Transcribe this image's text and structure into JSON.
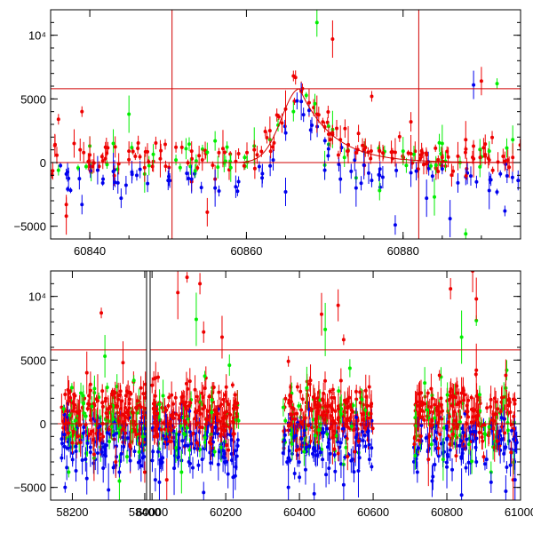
{
  "chart_data": [
    {
      "type": "scatter",
      "title": "",
      "xlabel": "",
      "ylabel": "",
      "xlim": [
        60835,
        60895
      ],
      "ylim": [
        -6000,
        12000
      ],
      "xticks": [
        {
          "value": 60840,
          "label": "60840"
        },
        {
          "value": 60860,
          "label": "60860"
        },
        {
          "value": 60880,
          "label": "60880"
        }
      ],
      "yticks": [
        {
          "value": -5000,
          "label": "−5000"
        },
        {
          "value": 0,
          "label": "0"
        },
        {
          "value": 5000,
          "label": "5000"
        },
        {
          "value": 10000,
          "label": "10⁴"
        }
      ],
      "hlines": [
        5800,
        0
      ],
      "vlines": [
        60850.5,
        60882
      ],
      "colors": {
        "g": "#00ee00",
        "r": "#ee0000",
        "b": "#0000ee",
        "line": "#d00000"
      },
      "model": {
        "peak_x": 60866.8,
        "peak_y": 5800,
        "rise": 2.3,
        "decay": 4.2,
        "baseline": 0
      },
      "series": [
        {
          "name": "g",
          "color": "#00ee00",
          "x": [
            60836,
            60840,
            60843,
            60847,
            60851,
            60855,
            60858,
            60861,
            60863,
            60866,
            60869,
            60871,
            60874,
            60877,
            60880,
            60884,
            60888,
            60891,
            60894,
            60845,
            60892,
            60856,
            60870,
            60885
          ],
          "y": [
            -600,
            1300,
            1500,
            -900,
            200,
            800,
            -400,
            1300,
            1800,
            4000,
            11000,
            2600,
            -1200,
            -2200,
            900,
            -2700,
            -5600,
            900,
            1800,
            3800,
            6200,
            1700,
            -200,
            1500
          ]
        },
        {
          "name": "r",
          "color": "#ee0000",
          "x": [
            60836,
            60837,
            60838,
            60840,
            60842,
            60845,
            60847,
            60849,
            60851,
            60853,
            60855,
            60857,
            60859,
            60861,
            60863,
            60865,
            60866,
            60867,
            60868,
            60869,
            60870,
            60871,
            60872,
            60873,
            60875,
            60877,
            60879,
            60881,
            60883,
            60885,
            60887,
            60889,
            60891,
            60893,
            60894,
            60837,
            60839,
            60853,
            60856,
            60871,
            60876,
            60881,
            60890,
            60888
          ],
          "y": [
            3400,
            -3300,
            1500,
            600,
            1200,
            900,
            -400,
            300,
            1200,
            900,
            -3900,
            1100,
            700,
            1000,
            2500,
            4200,
            6800,
            5600,
            4700,
            3800,
            2800,
            2200,
            1800,
            1400,
            1000,
            900,
            800,
            700,
            600,
            400,
            500,
            300,
            200,
            100,
            400,
            -4200,
            4000,
            -1500,
            -1300,
            9700,
            5200,
            3200,
            6400,
            1800
          ]
        },
        {
          "name": "b",
          "color": "#0000ee",
          "x": [
            60837,
            60839,
            60841,
            60843,
            60846,
            60850,
            60853,
            60856,
            60859,
            60862,
            60865,
            60867,
            60868,
            60870,
            60872,
            60874,
            60877,
            60879,
            60881,
            60883,
            60885,
            60887,
            60889,
            60891,
            60893,
            60844,
            60875,
            60886
          ],
          "y": [
            -900,
            -3300,
            -600,
            -700,
            -1000,
            -1400,
            -1300,
            -2000,
            -1500,
            -1200,
            -2300,
            4800,
            4100,
            -600,
            -1300,
            -2000,
            -1000,
            -4900,
            -800,
            -2800,
            -500,
            -1600,
            6100,
            -2200,
            -3800,
            -2800,
            -200,
            -4400
          ]
        }
      ]
    },
    {
      "type": "scatter",
      "title": "",
      "xlabel": "",
      "ylabel": "",
      "xlim": [
        58140,
        61000
      ],
      "ylim": [
        -6000,
        12000
      ],
      "xticks": [
        {
          "value": 58200,
          "label": "58200"
        },
        {
          "value": 58400,
          "label": "58400"
        },
        {
          "value": 60000,
          "label": "60000"
        },
        {
          "value": 60200,
          "label": "60200"
        },
        {
          "value": 60400,
          "label": "60400"
        },
        {
          "value": 60600,
          "label": "60600"
        },
        {
          "value": 60800,
          "label": "60800"
        },
        {
          "value": 61000,
          "label": "61000"
        }
      ],
      "yticks": [
        {
          "value": -5000,
          "label": "−5000"
        },
        {
          "value": 0,
          "label": "0"
        },
        {
          "value": 5000,
          "label": "5000"
        },
        {
          "value": 10000,
          "label": "10⁴"
        }
      ],
      "hlines": [
        5800,
        0
      ],
      "axis_break": {
        "left_end": 58410,
        "right_start": 59990
      },
      "colors": {
        "g": "#00ee00",
        "r": "#ee0000",
        "b": "#0000ee",
        "line": "#d00000"
      },
      "seasons": [
        {
          "start": 58170,
          "end": 58410
        },
        {
          "start": 60000,
          "end": 60235
        },
        {
          "start": 60355,
          "end": 60600
        },
        {
          "start": 60710,
          "end": 60990
        }
      ],
      "series": [
        {
          "name": "g",
          "color": "#00ee00",
          "x": [
            58190,
            58230,
            58260,
            58290,
            58330,
            58370,
            58395,
            60030,
            60080,
            60120,
            60170,
            60210,
            60380,
            60420,
            60470,
            60520,
            60570,
            60740,
            60790,
            60840,
            60880,
            60920,
            60960
          ],
          "y": [
            -3800,
            2200,
            -2700,
            5300,
            -4500,
            3400,
            -1000,
            2200,
            -3800,
            8200,
            -2200,
            4600,
            -1600,
            2800,
            7400,
            -3200,
            1900,
            3200,
            -2800,
            6800,
            8100,
            -3800,
            2800
          ]
        },
        {
          "name": "r",
          "color": "#ee0000",
          "x": [
            58180,
            58200,
            58220,
            58240,
            58260,
            58280,
            58300,
            58320,
            58340,
            58360,
            58380,
            58400,
            60010,
            60040,
            60070,
            60100,
            60130,
            60160,
            60190,
            60220,
            60370,
            60400,
            60430,
            60460,
            60490,
            60520,
            60550,
            60580,
            60720,
            60750,
            60780,
            60810,
            60840,
            60870,
            60880,
            60900,
            60930,
            60960,
            60980,
            58270,
            60095,
            60140,
            60505,
            60880
          ],
          "y": [
            2300,
            -1500,
            1000,
            4000,
            -2400,
            8700,
            1200,
            -3000,
            4800,
            -1800,
            1800,
            -3800,
            3600,
            -4400,
            10300,
            1400,
            11000,
            -1600,
            6800,
            -800,
            4900,
            -2000,
            3400,
            8600,
            -1100,
            6600,
            -2200,
            2600,
            1400,
            -2800,
            3800,
            10600,
            2400,
            12000,
            4200,
            -2600,
            2000,
            3800,
            -4400,
            1800,
            11500,
            7200,
            9300,
            9800
          ]
        },
        {
          "name": "b",
          "color": "#0000ee",
          "x": [
            58180,
            58210,
            58240,
            58270,
            58300,
            58330,
            58360,
            58390,
            60020,
            60060,
            60100,
            60140,
            60180,
            60220,
            60370,
            60400,
            60440,
            60480,
            60520,
            60560,
            60590,
            60720,
            60760,
            60800,
            60840,
            60880,
            60920,
            60960,
            60985
          ],
          "y": [
            -5000,
            -3700,
            -4300,
            -2300,
            -5200,
            -3800,
            -2900,
            -3300,
            -4600,
            -3500,
            -3000,
            -5400,
            -3200,
            -4200,
            -5000,
            -4200,
            -5500,
            -3500,
            -4800,
            -3700,
            -2800,
            -3800,
            -4500,
            -3400,
            -5600,
            -3000,
            -4600,
            -5300,
            -4400
          ]
        }
      ]
    }
  ]
}
